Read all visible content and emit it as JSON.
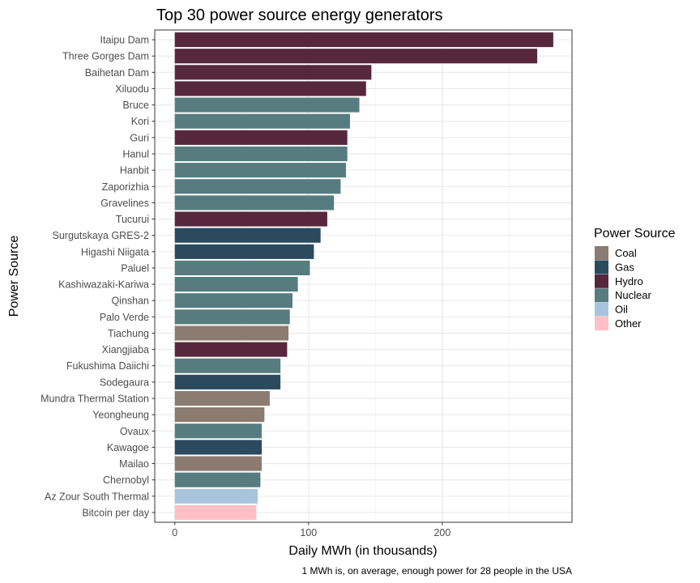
{
  "chart_data": {
    "type": "bar",
    "orientation": "horizontal",
    "title": "Top 30 power source energy generators",
    "xlabel": "Daily MWh (in thousands)",
    "ylabel": "Power Source",
    "caption": "1 MWh is, on average, enough power for 28 people in the USA",
    "xlim": [
      -15,
      297
    ],
    "xticks": [
      0,
      100,
      200
    ],
    "grid": true,
    "legend": {
      "title": "Power Source",
      "placement": "right",
      "entries": [
        {
          "name": "Coal",
          "color": "#8c7b70"
        },
        {
          "name": "Gas",
          "color": "#2b4a5e"
        },
        {
          "name": "Hydro",
          "color": "#56273d"
        },
        {
          "name": "Nuclear",
          "color": "#577c80"
        },
        {
          "name": "Oil",
          "color": "#a8c4dc"
        },
        {
          "name": "Other",
          "color": "#ffc0c5"
        }
      ]
    },
    "bars": [
      {
        "label": "Itaipu Dam",
        "value": 283,
        "source": "Hydro"
      },
      {
        "label": "Three Gorges Dam",
        "value": 271,
        "source": "Hydro"
      },
      {
        "label": "Baihetan Dam",
        "value": 147,
        "source": "Hydro"
      },
      {
        "label": "Xiluodu",
        "value": 143,
        "source": "Hydro"
      },
      {
        "label": "Bruce",
        "value": 138,
        "source": "Nuclear"
      },
      {
        "label": "Kori",
        "value": 131,
        "source": "Nuclear"
      },
      {
        "label": "Guri",
        "value": 129,
        "source": "Hydro"
      },
      {
        "label": "Hanul",
        "value": 129,
        "source": "Nuclear"
      },
      {
        "label": "Hanbit",
        "value": 128,
        "source": "Nuclear"
      },
      {
        "label": "Zaporizhia",
        "value": 124,
        "source": "Nuclear"
      },
      {
        "label": "Gravelines",
        "value": 119,
        "source": "Nuclear"
      },
      {
        "label": "Tucurui",
        "value": 114,
        "source": "Hydro"
      },
      {
        "label": "Surgutskaya GRES-2",
        "value": 109,
        "source": "Gas"
      },
      {
        "label": "Higashi Niigata",
        "value": 104,
        "source": "Gas"
      },
      {
        "label": "Paluel",
        "value": 101,
        "source": "Nuclear"
      },
      {
        "label": "Kashiwazaki-Kariwa",
        "value": 92,
        "source": "Nuclear"
      },
      {
        "label": "Qinshan",
        "value": 88,
        "source": "Nuclear"
      },
      {
        "label": "Palo Verde",
        "value": 86,
        "source": "Nuclear"
      },
      {
        "label": "Tiachung",
        "value": 85,
        "source": "Coal"
      },
      {
        "label": "Xiangjiaba",
        "value": 84,
        "source": "Hydro"
      },
      {
        "label": "Fukushima Daiichi",
        "value": 79,
        "source": "Nuclear"
      },
      {
        "label": "Sodegaura",
        "value": 79,
        "source": "Gas"
      },
      {
        "label": "Mundra Thermal Station",
        "value": 71,
        "source": "Coal"
      },
      {
        "label": "Yeongheung",
        "value": 67,
        "source": "Coal"
      },
      {
        "label": "Ovaux",
        "value": 65,
        "source": "Nuclear"
      },
      {
        "label": "Kawagoe",
        "value": 65,
        "source": "Gas"
      },
      {
        "label": "Mailao",
        "value": 65,
        "source": "Coal"
      },
      {
        "label": "Chernobyl",
        "value": 64,
        "source": "Nuclear"
      },
      {
        "label": "Az Zour South Thermal",
        "value": 62,
        "source": "Oil"
      },
      {
        "label": "Bitcoin per day",
        "value": 61,
        "source": "Other"
      }
    ]
  }
}
